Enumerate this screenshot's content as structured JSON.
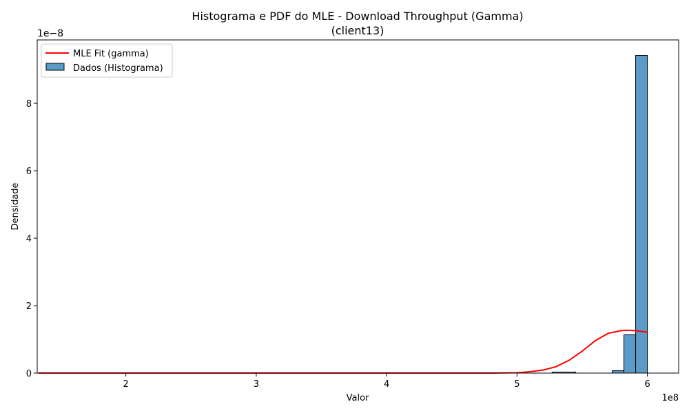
{
  "chart_data": {
    "type": "bar",
    "title": "Histograma e PDF do MLE - Download Throughput (Gamma)",
    "subtitle": "(client13)",
    "xlabel": "Valor",
    "ylabel": "Densidade",
    "x_offset_label": "1e8",
    "y_offset_label": "1e−8",
    "xlim": [
      1.32,
      6.24
    ],
    "ylim": [
      0,
      9.88
    ],
    "x_ticks": [
      2,
      3,
      4,
      5,
      6
    ],
    "y_ticks": [
      0,
      2,
      4,
      6,
      8
    ],
    "grid": false,
    "legend_position": "top-left",
    "histogram": {
      "name": "Dados (Histograma)",
      "color": "#5b9bc8",
      "edge_color": "#000000",
      "bins": [
        {
          "x0": 5.27,
          "x1": 5.45,
          "value": 0.03
        },
        {
          "x0": 5.73,
          "x1": 5.82,
          "value": 0.07
        },
        {
          "x0": 5.82,
          "x1": 5.91,
          "value": 1.14
        },
        {
          "x0": 5.91,
          "x1": 6.0,
          "value": 9.42
        }
      ]
    },
    "fit": {
      "name": "MLE Fit (gamma)",
      "color": "#ff0000",
      "x": [
        1.33,
        4.8,
        5.0,
        5.1,
        5.2,
        5.3,
        5.4,
        5.5,
        5.6,
        5.7,
        5.8,
        5.85,
        5.9,
        5.95,
        6.0
      ],
      "values": [
        0.0,
        0.0,
        0.01,
        0.04,
        0.09,
        0.19,
        0.38,
        0.65,
        0.96,
        1.18,
        1.26,
        1.27,
        1.26,
        1.24,
        1.21
      ]
    }
  }
}
